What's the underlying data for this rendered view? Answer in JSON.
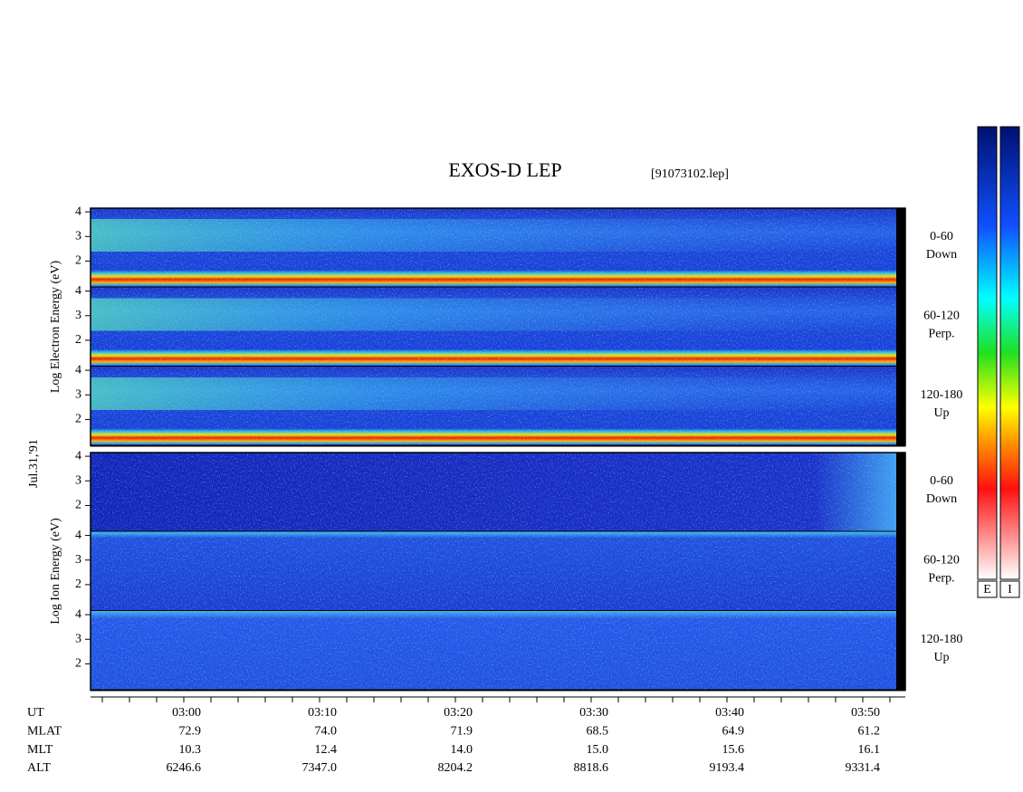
{
  "title": "EXOS-D LEP",
  "file": "[91073102.lep]",
  "date": "Jul.31,'91",
  "yticks": [
    4,
    3,
    2
  ],
  "ylim": [
    0.93,
    4.15
  ],
  "groups": [
    {
      "y_label": "Log Electron Energy (eV)",
      "panels": [
        {
          "pitch": "0-60",
          "dir": "Down"
        },
        {
          "pitch": "60-120",
          "dir": "Perp."
        },
        {
          "pitch": "120-180",
          "dir": "Up"
        }
      ]
    },
    {
      "y_label": "Log Ion Energy (eV)",
      "panels": [
        {
          "pitch": "0-60",
          "dir": "Down"
        },
        {
          "pitch": "60-120",
          "dir": "Perp."
        },
        {
          "pitch": "120-180",
          "dir": "Up"
        }
      ]
    }
  ],
  "orbit": {
    "rows": [
      {
        "name": "UT",
        "values": [
          "03:00",
          "03:10",
          "03:20",
          "03:30",
          "03:40",
          "03:50"
        ]
      },
      {
        "name": "MLAT",
        "values": [
          "72.9",
          "74.0",
          "71.9",
          "68.5",
          "64.9",
          "61.2"
        ]
      },
      {
        "name": "MLT",
        "values": [
          "10.3",
          "12.4",
          "14.0",
          "15.0",
          "15.6",
          "16.1"
        ]
      },
      {
        "name": "ALT",
        "values": [
          "6246.6",
          "7347.0",
          "8204.2",
          "8818.6",
          "9193.4",
          "9331.4"
        ]
      }
    ]
  },
  "colorbars": [
    "E",
    "I"
  ]
}
